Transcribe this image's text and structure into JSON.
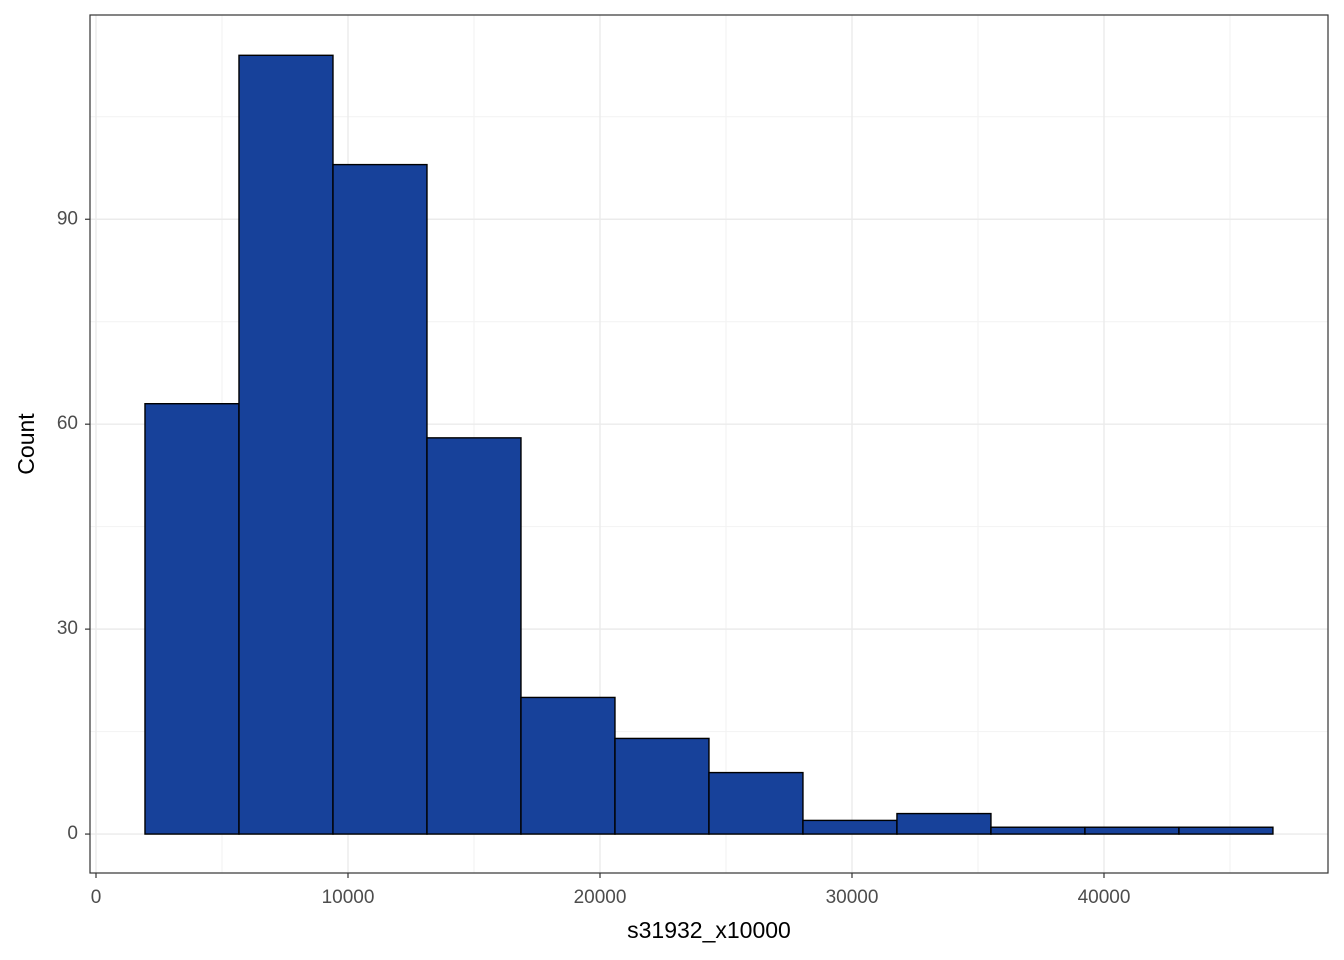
{
  "chart_data": {
    "type": "histogram",
    "x_label": "s31932_x10000",
    "y_label": "Count",
    "bins": [
      1944,
      5674,
      9404,
      13134,
      16864,
      20594,
      24324,
      28054,
      31784,
      35514,
      39244,
      42974,
      46704
    ],
    "values": [
      63,
      114,
      98,
      58,
      20,
      14,
      9,
      2,
      3,
      1,
      1,
      1
    ],
    "color": "#17419a",
    "xlim": [
      -238,
      48889
    ],
    "ylim": [
      -5.7,
      119.9
    ],
    "xticks": [
      0,
      10000,
      20000,
      30000,
      40000
    ],
    "yticks": [
      0,
      30,
      60,
      90
    ],
    "grid": true
  }
}
